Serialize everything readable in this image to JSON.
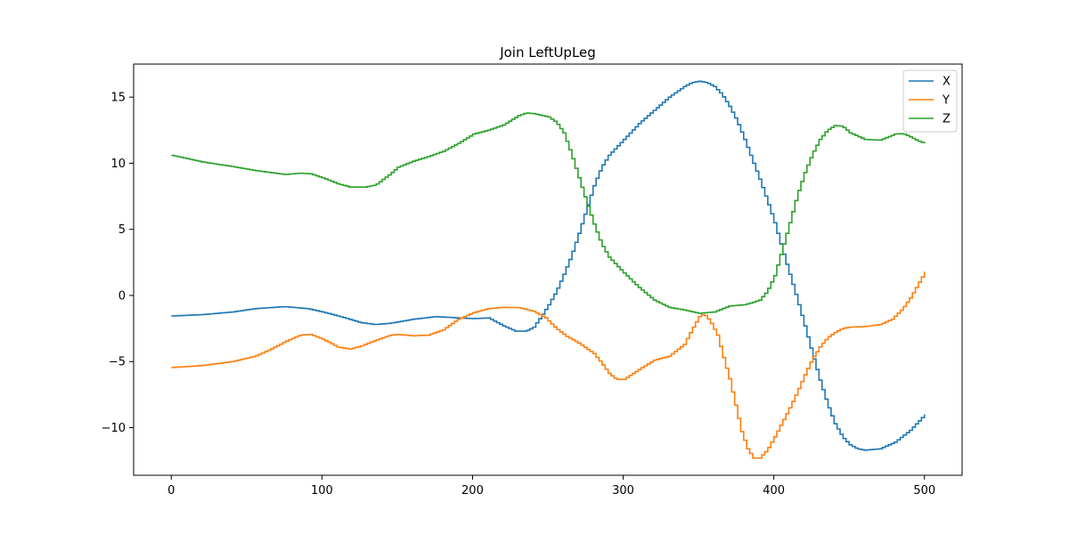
{
  "chart_data": {
    "type": "line",
    "title": "Join LeftUpLeg",
    "xlabel": "",
    "ylabel": "",
    "xlim": [
      -25,
      525
    ],
    "ylim": [
      -13.6,
      17.5
    ],
    "xticks": [
      0,
      100,
      200,
      300,
      400,
      500
    ],
    "yticks": [
      -10,
      -5,
      0,
      5,
      10,
      15
    ],
    "xtick_labels": [
      "0",
      "100",
      "200",
      "300",
      "400",
      "500"
    ],
    "ytick_labels": [
      "−10",
      "−5",
      "0",
      "5",
      "10",
      "15"
    ],
    "grid": false,
    "legend_position": "top-right",
    "series": [
      {
        "name": "X",
        "color": "#1f77b4",
        "points": [
          [
            0,
            -1.55
          ],
          [
            20,
            -1.45
          ],
          [
            40,
            -1.25
          ],
          [
            55,
            -1.0
          ],
          [
            70,
            -0.88
          ],
          [
            75,
            -0.85
          ],
          [
            90,
            -1.0
          ],
          [
            100,
            -1.25
          ],
          [
            115,
            -1.7
          ],
          [
            125,
            -2.05
          ],
          [
            135,
            -2.2
          ],
          [
            145,
            -2.1
          ],
          [
            160,
            -1.8
          ],
          [
            175,
            -1.6
          ],
          [
            190,
            -1.7
          ],
          [
            200,
            -1.75
          ],
          [
            210,
            -1.7
          ],
          [
            220,
            -2.3
          ],
          [
            228,
            -2.7
          ],
          [
            235,
            -2.7
          ],
          [
            240,
            -2.4
          ],
          [
            245,
            -1.6
          ],
          [
            250,
            -0.7
          ],
          [
            255,
            0.3
          ],
          [
            260,
            1.6
          ],
          [
            265,
            3.0
          ],
          [
            270,
            4.7
          ],
          [
            275,
            6.5
          ],
          [
            280,
            8.3
          ],
          [
            285,
            9.7
          ],
          [
            290,
            10.6
          ],
          [
            300,
            11.8
          ],
          [
            310,
            13.0
          ],
          [
            320,
            14.0
          ],
          [
            330,
            15.0
          ],
          [
            340,
            15.8
          ],
          [
            345,
            16.1
          ],
          [
            350,
            16.2
          ],
          [
            355,
            16.1
          ],
          [
            360,
            15.8
          ],
          [
            365,
            15.2
          ],
          [
            370,
            14.3
          ],
          [
            375,
            13.2
          ],
          [
            380,
            11.8
          ],
          [
            385,
            10.3
          ],
          [
            390,
            8.8
          ],
          [
            395,
            7.2
          ],
          [
            400,
            5.5
          ],
          [
            405,
            3.5
          ],
          [
            410,
            1.6
          ],
          [
            415,
            -0.3
          ],
          [
            420,
            -2.3
          ],
          [
            425,
            -4.4
          ],
          [
            430,
            -6.4
          ],
          [
            435,
            -8.2
          ],
          [
            440,
            -9.7
          ],
          [
            445,
            -10.7
          ],
          [
            450,
            -11.3
          ],
          [
            455,
            -11.6
          ],
          [
            460,
            -11.7
          ],
          [
            470,
            -11.6
          ],
          [
            480,
            -11.1
          ],
          [
            490,
            -10.2
          ],
          [
            500,
            -9.0
          ]
        ]
      },
      {
        "name": "Y",
        "color": "#ff7f0e",
        "points": [
          [
            0,
            -5.45
          ],
          [
            20,
            -5.3
          ],
          [
            40,
            -5.0
          ],
          [
            55,
            -4.6
          ],
          [
            65,
            -4.1
          ],
          [
            75,
            -3.5
          ],
          [
            85,
            -3.0
          ],
          [
            92,
            -2.95
          ],
          [
            100,
            -3.3
          ],
          [
            110,
            -3.9
          ],
          [
            118,
            -4.05
          ],
          [
            125,
            -3.85
          ],
          [
            135,
            -3.4
          ],
          [
            145,
            -3.0
          ],
          [
            150,
            -2.95
          ],
          [
            160,
            -3.05
          ],
          [
            170,
            -3.0
          ],
          [
            180,
            -2.6
          ],
          [
            190,
            -1.8
          ],
          [
            200,
            -1.3
          ],
          [
            210,
            -1.0
          ],
          [
            220,
            -0.9
          ],
          [
            230,
            -0.92
          ],
          [
            240,
            -1.2
          ],
          [
            248,
            -1.7
          ],
          [
            255,
            -2.5
          ],
          [
            262,
            -3.1
          ],
          [
            270,
            -3.6
          ],
          [
            280,
            -4.4
          ],
          [
            285,
            -5.1
          ],
          [
            290,
            -5.9
          ],
          [
            295,
            -6.35
          ],
          [
            300,
            -6.35
          ],
          [
            310,
            -5.6
          ],
          [
            320,
            -4.9
          ],
          [
            330,
            -4.6
          ],
          [
            340,
            -3.7
          ],
          [
            345,
            -2.6
          ],
          [
            350,
            -1.6
          ],
          [
            353,
            -1.4
          ],
          [
            357,
            -1.9
          ],
          [
            362,
            -3.0
          ],
          [
            366,
            -4.7
          ],
          [
            370,
            -6.3
          ],
          [
            374,
            -8.3
          ],
          [
            378,
            -10.3
          ],
          [
            382,
            -11.6
          ],
          [
            386,
            -12.3
          ],
          [
            390,
            -12.3
          ],
          [
            395,
            -11.7
          ],
          [
            400,
            -10.7
          ],
          [
            405,
            -9.6
          ],
          [
            410,
            -8.5
          ],
          [
            415,
            -7.3
          ],
          [
            420,
            -6.0
          ],
          [
            425,
            -4.8
          ],
          [
            430,
            -3.9
          ],
          [
            435,
            -3.2
          ],
          [
            440,
            -2.8
          ],
          [
            445,
            -2.5
          ],
          [
            450,
            -2.4
          ],
          [
            460,
            -2.35
          ],
          [
            470,
            -2.2
          ],
          [
            478,
            -1.8
          ],
          [
            485,
            -1.0
          ],
          [
            490,
            -0.2
          ],
          [
            495,
            0.8
          ],
          [
            500,
            1.8
          ]
        ]
      },
      {
        "name": "Z",
        "color": "#2ca02c",
        "points": [
          [
            0,
            10.6
          ],
          [
            20,
            10.1
          ],
          [
            40,
            9.75
          ],
          [
            55,
            9.45
          ],
          [
            65,
            9.3
          ],
          [
            75,
            9.15
          ],
          [
            85,
            9.25
          ],
          [
            92,
            9.2
          ],
          [
            100,
            8.9
          ],
          [
            110,
            8.45
          ],
          [
            118,
            8.2
          ],
          [
            128,
            8.2
          ],
          [
            135,
            8.35
          ],
          [
            145,
            9.2
          ],
          [
            150,
            9.7
          ],
          [
            160,
            10.15
          ],
          [
            170,
            10.5
          ],
          [
            180,
            10.9
          ],
          [
            190,
            11.5
          ],
          [
            200,
            12.2
          ],
          [
            210,
            12.5
          ],
          [
            220,
            12.9
          ],
          [
            230,
            13.6
          ],
          [
            235,
            13.8
          ],
          [
            240,
            13.75
          ],
          [
            250,
            13.5
          ],
          [
            255,
            13.1
          ],
          [
            260,
            12.3
          ],
          [
            265,
            10.7
          ],
          [
            270,
            8.9
          ],
          [
            275,
            7.1
          ],
          [
            280,
            5.4
          ],
          [
            285,
            3.9
          ],
          [
            290,
            2.9
          ],
          [
            300,
            1.7
          ],
          [
            310,
            0.6
          ],
          [
            320,
            -0.35
          ],
          [
            330,
            -0.9
          ],
          [
            340,
            -1.1
          ],
          [
            350,
            -1.35
          ],
          [
            360,
            -1.25
          ],
          [
            370,
            -0.8
          ],
          [
            380,
            -0.7
          ],
          [
            385,
            -0.55
          ],
          [
            390,
            -0.35
          ],
          [
            395,
            0.3
          ],
          [
            400,
            1.5
          ],
          [
            405,
            3.5
          ],
          [
            410,
            5.5
          ],
          [
            415,
            7.6
          ],
          [
            420,
            9.3
          ],
          [
            425,
            10.7
          ],
          [
            430,
            11.8
          ],
          [
            435,
            12.5
          ],
          [
            440,
            12.85
          ],
          [
            445,
            12.8
          ],
          [
            450,
            12.3
          ],
          [
            460,
            11.8
          ],
          [
            470,
            11.75
          ],
          [
            480,
            12.2
          ],
          [
            485,
            12.25
          ],
          [
            490,
            12.0
          ],
          [
            495,
            11.7
          ],
          [
            500,
            11.5
          ]
        ]
      }
    ]
  }
}
